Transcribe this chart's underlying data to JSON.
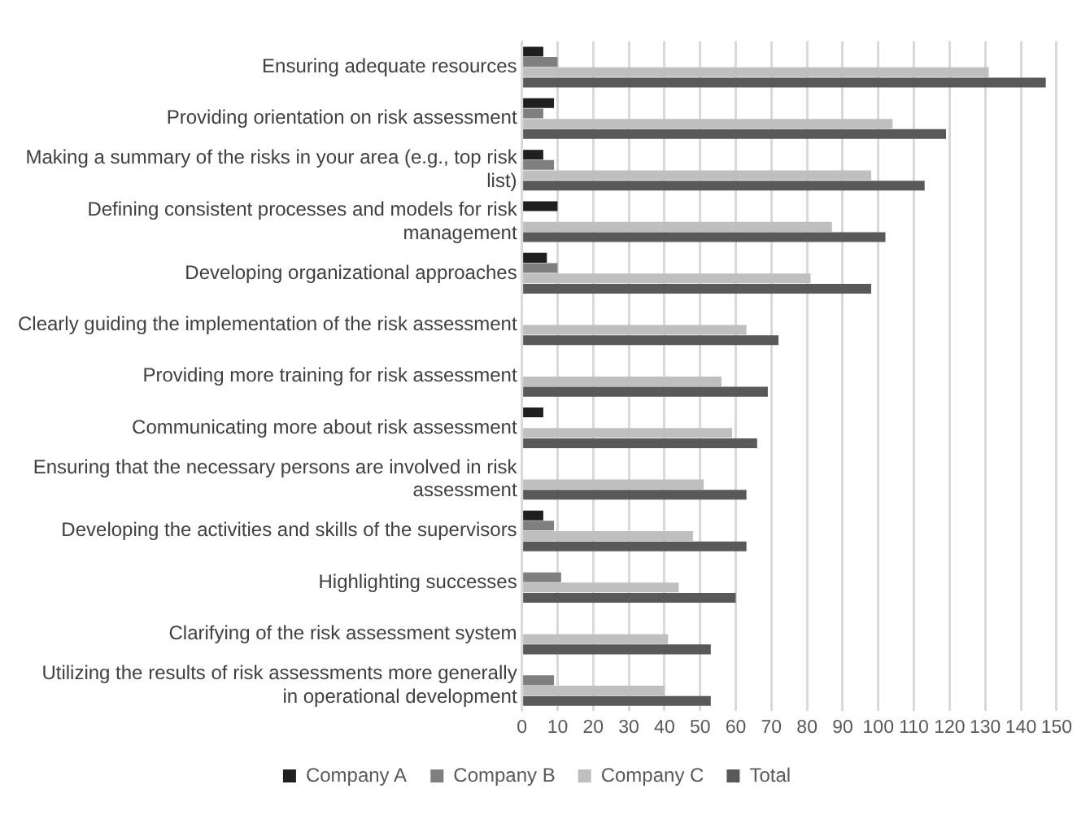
{
  "chart_data": {
    "type": "bar",
    "orientation": "horizontal",
    "categories": [
      "Ensuring adequate resources",
      "Providing orientation on risk assessment",
      "Making a summary of the risks in your area (e.g., top risk list)",
      "Defining consistent processes and models for risk management",
      "Developing organizational approaches",
      "Clearly guiding the implementation of the risk assessment",
      "Providing more training for risk assessment",
      "Communicating more about risk assessment",
      "Ensuring that the necessary persons are involved in risk assessment",
      "Developing the activities and skills of the supervisors",
      "Highlighting successes",
      "Clarifying of the risk assessment system",
      "Utilizing the results of risk assessments more generally in operational development"
    ],
    "series": [
      {
        "name": "Company A",
        "color": "#1f1f1f",
        "values": [
          6,
          9,
          6,
          10,
          7,
          null,
          null,
          6,
          null,
          6,
          null,
          null,
          null
        ]
      },
      {
        "name": "Company B",
        "color": "#7f7f7f",
        "values": [
          10,
          6,
          9,
          null,
          10,
          null,
          null,
          null,
          null,
          9,
          11,
          null,
          9
        ]
      },
      {
        "name": "Company C",
        "color": "#bfbfbf",
        "values": [
          131,
          104,
          98,
          87,
          81,
          63,
          56,
          59,
          51,
          48,
          44,
          41,
          40
        ]
      },
      {
        "name": "Total",
        "color": "#595959",
        "values": [
          147,
          119,
          113,
          102,
          98,
          72,
          69,
          66,
          63,
          63,
          60,
          53,
          53
        ]
      }
    ],
    "xlim": [
      0,
      150
    ],
    "xticks": [
      0,
      10,
      20,
      30,
      40,
      50,
      60,
      70,
      80,
      90,
      100,
      110,
      120,
      130,
      140,
      150
    ],
    "grid": "x",
    "legend": "bottom"
  }
}
